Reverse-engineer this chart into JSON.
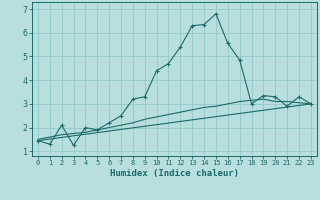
{
  "xlabel": "Humidex (Indice chaleur)",
  "xlim": [
    -0.5,
    23.5
  ],
  "ylim": [
    0.8,
    7.3
  ],
  "yticks": [
    1,
    2,
    3,
    4,
    5,
    6,
    7
  ],
  "xticks": [
    0,
    1,
    2,
    3,
    4,
    5,
    6,
    7,
    8,
    9,
    10,
    11,
    12,
    13,
    14,
    15,
    16,
    17,
    18,
    19,
    20,
    21,
    22,
    23
  ],
  "background_color": "#b8dede",
  "grid_color": "#99cccc",
  "line_color": "#1a6b6b",
  "curve1_x": [
    0,
    1,
    2,
    3,
    4,
    5,
    6,
    7,
    8,
    9,
    10,
    11,
    12,
    13,
    14,
    15,
    16,
    17,
    18,
    19,
    20,
    21,
    22,
    23
  ],
  "curve1_y": [
    1.45,
    1.3,
    2.1,
    1.25,
    2.0,
    1.9,
    2.2,
    2.5,
    3.2,
    3.3,
    4.4,
    4.7,
    5.4,
    6.3,
    6.35,
    6.8,
    5.55,
    4.85,
    3.0,
    3.35,
    3.3,
    2.9,
    3.3,
    3.0
  ],
  "curve2_x": [
    0,
    1,
    2,
    3,
    4,
    5,
    6,
    7,
    8,
    9,
    10,
    11,
    12,
    13,
    14,
    15,
    16,
    17,
    18,
    19,
    20,
    21,
    22,
    23
  ],
  "curve2_y": [
    1.5,
    1.6,
    1.7,
    1.75,
    1.8,
    1.9,
    2.0,
    2.1,
    2.2,
    2.35,
    2.45,
    2.55,
    2.65,
    2.75,
    2.85,
    2.9,
    3.0,
    3.1,
    3.15,
    3.2,
    3.1,
    3.1,
    3.05,
    3.0
  ],
  "curve3_x": [
    0,
    23
  ],
  "curve3_y": [
    1.45,
    3.0
  ]
}
